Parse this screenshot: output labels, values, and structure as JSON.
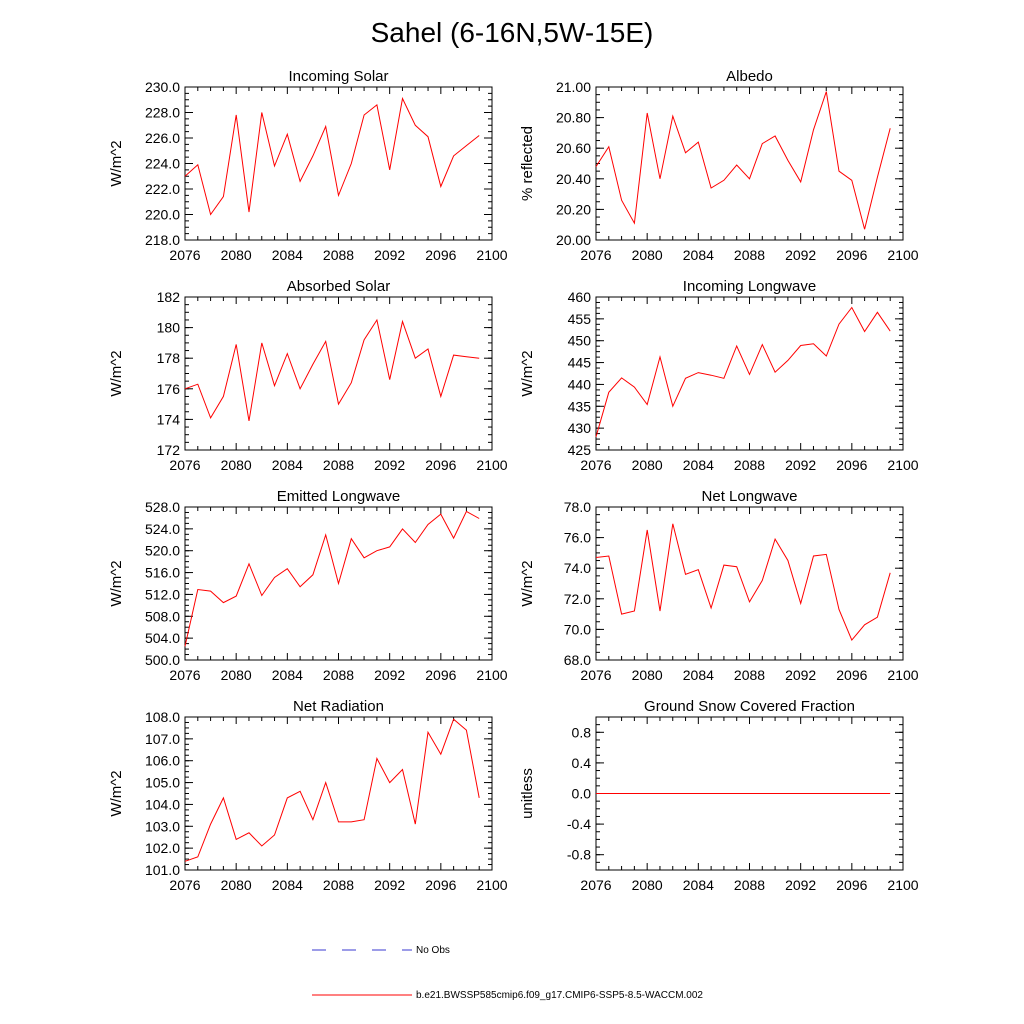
{
  "title": "Sahel (6-16N,5W-15E)",
  "legend": {
    "obs_label": "No Obs",
    "obs_color": "#3a3ad0",
    "model_label": "b.e21.BWSSP585cmip6.f09_g17.CMIP6-SSP5-8.5-WACCM.002",
    "model_color": "#ff0000"
  },
  "chart_data": [
    {
      "type": "line",
      "title": "Incoming Solar",
      "ylabel": "W/m^2",
      "xlim": [
        2076,
        2100
      ],
      "ylim": [
        218,
        230
      ],
      "xticks": [
        "2076",
        "2080",
        "2084",
        "2088",
        "2092",
        "2096",
        "2100"
      ],
      "yticks": [
        "218.0",
        "220.0",
        "222.0",
        "224.0",
        "226.0",
        "228.0",
        "230.0"
      ],
      "x": [
        2076,
        2077,
        2078,
        2079,
        2080,
        2081,
        2082,
        2083,
        2084,
        2085,
        2086,
        2087,
        2088,
        2089,
        2090,
        2091,
        2092,
        2093,
        2094,
        2095,
        2096,
        2097,
        2098,
        2099
      ],
      "series": [
        {
          "name": "b.e21.BWSSP585cmip6.f09_g17.CMIP6-SSP5-8.5-WACCM.002",
          "values": [
            223.0,
            223.9,
            220.0,
            221.4,
            227.8,
            220.2,
            228.0,
            223.8,
            226.3,
            222.6,
            224.6,
            226.9,
            221.5,
            224.0,
            227.8,
            228.6,
            223.5,
            229.1,
            227.0,
            226.1,
            222.2,
            224.6,
            225.4,
            226.2
          ]
        }
      ]
    },
    {
      "type": "line",
      "title": "Albedo",
      "ylabel": "% reflected",
      "xlim": [
        2076,
        2100
      ],
      "ylim": [
        20.0,
        21.0
      ],
      "xticks": [
        "2076",
        "2080",
        "2084",
        "2088",
        "2092",
        "2096",
        "2100"
      ],
      "yticks": [
        "20.00",
        "20.20",
        "20.40",
        "20.60",
        "20.80",
        "21.00"
      ],
      "x": [
        2076,
        2077,
        2078,
        2079,
        2080,
        2081,
        2082,
        2083,
        2084,
        2085,
        2086,
        2087,
        2088,
        2089,
        2090,
        2091,
        2092,
        2093,
        2094,
        2095,
        2096,
        2097,
        2098,
        2099
      ],
      "series": [
        {
          "name": "b.e21.BWSSP585cmip6.f09_g17.CMIP6-SSP5-8.5-WACCM.002",
          "values": [
            20.48,
            20.61,
            20.26,
            20.11,
            20.83,
            20.4,
            20.81,
            20.57,
            20.64,
            20.34,
            20.39,
            20.49,
            20.4,
            20.63,
            20.68,
            20.52,
            20.38,
            20.72,
            20.97,
            20.45,
            20.39,
            20.07,
            20.41,
            20.73
          ]
        }
      ]
    },
    {
      "type": "line",
      "title": "Absorbed Solar",
      "ylabel": "W/m^2",
      "xlim": [
        2076,
        2100
      ],
      "ylim": [
        172,
        182
      ],
      "xticks": [
        "2076",
        "2080",
        "2084",
        "2088",
        "2092",
        "2096",
        "2100"
      ],
      "yticks": [
        "172",
        "174",
        "176",
        "178",
        "180",
        "182"
      ],
      "x": [
        2076,
        2077,
        2078,
        2079,
        2080,
        2081,
        2082,
        2083,
        2084,
        2085,
        2086,
        2087,
        2088,
        2089,
        2090,
        2091,
        2092,
        2093,
        2094,
        2095,
        2096,
        2097,
        2098,
        2099
      ],
      "series": [
        {
          "name": "b.e21.BWSSP585cmip6.f09_g17.CMIP6-SSP5-8.5-WACCM.002",
          "values": [
            176.0,
            176.3,
            174.1,
            175.5,
            178.9,
            173.9,
            179.0,
            176.2,
            178.3,
            176.0,
            177.6,
            179.1,
            175.0,
            176.4,
            179.2,
            180.5,
            176.6,
            180.4,
            178.0,
            178.6,
            175.5,
            178.2,
            178.1,
            178.0
          ]
        }
      ]
    },
    {
      "type": "line",
      "title": "Incoming Longwave",
      "ylabel": "W/m^2",
      "xlim": [
        2076,
        2100
      ],
      "ylim": [
        425,
        460
      ],
      "xticks": [
        "2076",
        "2080",
        "2084",
        "2088",
        "2092",
        "2096",
        "2100"
      ],
      "yticks": [
        "425",
        "430",
        "435",
        "440",
        "445",
        "450",
        "455",
        "460"
      ],
      "x": [
        2076,
        2077,
        2078,
        2079,
        2080,
        2081,
        2082,
        2083,
        2084,
        2085,
        2086,
        2087,
        2088,
        2089,
        2090,
        2091,
        2092,
        2093,
        2094,
        2095,
        2096,
        2097,
        2098,
        2099
      ],
      "series": [
        {
          "name": "b.e21.BWSSP585cmip6.f09_g17.CMIP6-SSP5-8.5-WACCM.002",
          "values": [
            428.0,
            438.2,
            441.5,
            439.4,
            435.4,
            446.3,
            435.0,
            441.4,
            442.7,
            442.1,
            441.4,
            448.8,
            442.3,
            449.1,
            442.8,
            445.5,
            448.9,
            449.3,
            446.5,
            453.8,
            457.6,
            452.1,
            456.5,
            452.2
          ]
        }
      ]
    },
    {
      "type": "line",
      "title": "Emitted Longwave",
      "ylabel": "W/m^2",
      "xlim": [
        2076,
        2100
      ],
      "ylim": [
        500,
        528
      ],
      "xticks": [
        "2076",
        "2080",
        "2084",
        "2088",
        "2092",
        "2096",
        "2100"
      ],
      "yticks": [
        "500.0",
        "504.0",
        "508.0",
        "512.0",
        "516.0",
        "520.0",
        "524.0",
        "528.0"
      ],
      "x": [
        2076,
        2077,
        2078,
        2079,
        2080,
        2081,
        2082,
        2083,
        2084,
        2085,
        2086,
        2087,
        2088,
        2089,
        2090,
        2091,
        2092,
        2093,
        2094,
        2095,
        2096,
        2097,
        2098,
        2099
      ],
      "series": [
        {
          "name": "b.e21.BWSSP585cmip6.f09_g17.CMIP6-SSP5-8.5-WACCM.002",
          "values": [
            502.5,
            512.9,
            512.6,
            510.5,
            511.7,
            517.6,
            511.8,
            515.1,
            516.7,
            513.4,
            515.6,
            522.9,
            514.0,
            522.2,
            518.7,
            520.0,
            520.7,
            524.0,
            521.5,
            524.8,
            526.7,
            522.3,
            527.2,
            525.9
          ]
        }
      ]
    },
    {
      "type": "line",
      "title": "Net Longwave",
      "ylabel": "W/m^2",
      "xlim": [
        2076,
        2100
      ],
      "ylim": [
        68,
        78
      ],
      "xticks": [
        "2076",
        "2080",
        "2084",
        "2088",
        "2092",
        "2096",
        "2100"
      ],
      "yticks": [
        "68.0",
        "70.0",
        "72.0",
        "74.0",
        "76.0",
        "78.0"
      ],
      "x": [
        2076,
        2077,
        2078,
        2079,
        2080,
        2081,
        2082,
        2083,
        2084,
        2085,
        2086,
        2087,
        2088,
        2089,
        2090,
        2091,
        2092,
        2093,
        2094,
        2095,
        2096,
        2097,
        2098,
        2099
      ],
      "series": [
        {
          "name": "b.e21.BWSSP585cmip6.f09_g17.CMIP6-SSP5-8.5-WACCM.002",
          "values": [
            74.7,
            74.8,
            71.0,
            71.2,
            76.5,
            71.2,
            76.9,
            73.6,
            73.9,
            71.4,
            74.2,
            74.1,
            71.8,
            73.2,
            75.9,
            74.5,
            71.7,
            74.8,
            74.9,
            71.3,
            69.3,
            70.3,
            70.8,
            73.7
          ]
        }
      ]
    },
    {
      "type": "line",
      "title": "Net Radiation",
      "ylabel": "W/m^2",
      "xlim": [
        2076,
        2100
      ],
      "ylim": [
        101,
        108
      ],
      "xticks": [
        "2076",
        "2080",
        "2084",
        "2088",
        "2092",
        "2096",
        "2100"
      ],
      "yticks": [
        "101.0",
        "102.0",
        "103.0",
        "104.0",
        "105.0",
        "106.0",
        "107.0",
        "108.0"
      ],
      "x": [
        2076,
        2077,
        2078,
        2079,
        2080,
        2081,
        2082,
        2083,
        2084,
        2085,
        2086,
        2087,
        2088,
        2089,
        2090,
        2091,
        2092,
        2093,
        2094,
        2095,
        2096,
        2097,
        2098,
        2099
      ],
      "series": [
        {
          "name": "b.e21.BWSSP585cmip6.f09_g17.CMIP6-SSP5-8.5-WACCM.002",
          "values": [
            101.4,
            101.6,
            103.1,
            104.3,
            102.4,
            102.7,
            102.1,
            102.6,
            104.3,
            104.6,
            103.3,
            105.0,
            103.2,
            103.2,
            103.3,
            106.1,
            105.0,
            105.6,
            103.1,
            107.3,
            106.3,
            107.9,
            107.4,
            104.3
          ]
        }
      ]
    },
    {
      "type": "line",
      "title": "Ground Snow Covered Fraction",
      "ylabel": "unitless",
      "xlim": [
        2076,
        2100
      ],
      "ylim": [
        -1.0,
        1.0
      ],
      "xticks": [
        "2076",
        "2080",
        "2084",
        "2088",
        "2092",
        "2096",
        "2100"
      ],
      "yticks": [
        "-0.8",
        "-0.4",
        "0.0",
        "0.4",
        "0.8"
      ],
      "ytick_values": [
        -0.8,
        -0.4,
        0.0,
        0.4,
        0.8
      ],
      "x": [
        2076,
        2077,
        2078,
        2079,
        2080,
        2081,
        2082,
        2083,
        2084,
        2085,
        2086,
        2087,
        2088,
        2089,
        2090,
        2091,
        2092,
        2093,
        2094,
        2095,
        2096,
        2097,
        2098,
        2099
      ],
      "series": [
        {
          "name": "b.e21.BWSSP585cmip6.f09_g17.CMIP6-SSP5-8.5-WACCM.002",
          "values": [
            0,
            0,
            0,
            0,
            0,
            0,
            0,
            0,
            0,
            0,
            0,
            0,
            0,
            0,
            0,
            0,
            0,
            0,
            0,
            0,
            0,
            0,
            0,
            0
          ]
        }
      ]
    }
  ]
}
